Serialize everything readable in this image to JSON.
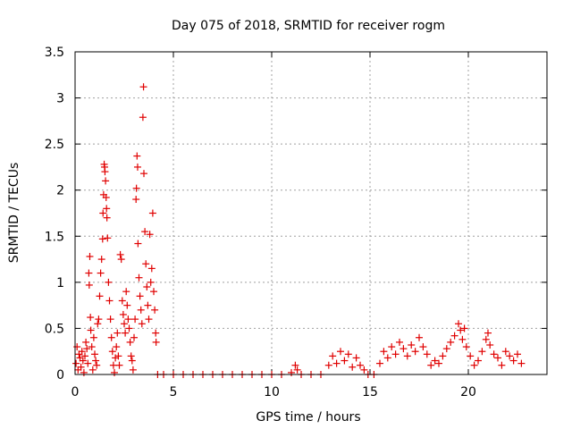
{
  "chart_data": {
    "type": "scatter",
    "title": "Day 075 of 2018, SRMTID for receiver rogm",
    "xlabel": "GPS time / hours",
    "ylabel": "SRMTID / TECUs",
    "xlim": [
      0,
      24
    ],
    "ylim": [
      0,
      3.5
    ],
    "grid": true,
    "marker": "plus",
    "color": "#e00000",
    "x_ticks": [
      0,
      5,
      10,
      15,
      20
    ],
    "x_tick_labels": [
      "0",
      "5",
      "10",
      "15",
      "20"
    ],
    "y_ticks": [
      0,
      0.5,
      1,
      1.5,
      2,
      2.5,
      3,
      3.5
    ],
    "y_tick_labels": [
      "0",
      "0.5",
      "1",
      "1.5",
      "2",
      "2.5",
      "3",
      "3.5"
    ],
    "series": [
      {
        "points": [
          [
            0.05,
            0.12
          ],
          [
            0.1,
            0.3
          ],
          [
            0.15,
            0.05
          ],
          [
            0.2,
            0.22
          ],
          [
            0.25,
            0.18
          ],
          [
            0.3,
            0.08
          ],
          [
            0.35,
            0.25
          ],
          [
            0.4,
            0.15
          ],
          [
            0.45,
            0.02
          ],
          [
            0.5,
            0.2
          ],
          [
            0.55,
            0.35
          ],
          [
            0.6,
            0.28
          ],
          [
            0.65,
            0.12
          ],
          [
            0.7,
            1.1
          ],
          [
            0.72,
            0.97
          ],
          [
            0.75,
            1.28
          ],
          [
            0.78,
            0.62
          ],
          [
            0.8,
            0.48
          ],
          [
            0.85,
            0.3
          ],
          [
            0.9,
            0.05
          ],
          [
            0.95,
            0.4
          ],
          [
            1.0,
            0.22
          ],
          [
            1.05,
            0.15
          ],
          [
            1.1,
            0.1
          ],
          [
            1.15,
            0.55
          ],
          [
            1.2,
            0.6
          ],
          [
            1.25,
            0.85
          ],
          [
            1.3,
            1.1
          ],
          [
            1.35,
            1.25
          ],
          [
            1.4,
            1.47
          ],
          [
            1.42,
            1.75
          ],
          [
            1.45,
            1.95
          ],
          [
            1.48,
            2.28
          ],
          [
            1.5,
            2.25
          ],
          [
            1.52,
            2.2
          ],
          [
            1.55,
            2.1
          ],
          [
            1.58,
            1.92
          ],
          [
            1.6,
            1.8
          ],
          [
            1.62,
            1.7
          ],
          [
            1.65,
            1.48
          ],
          [
            1.7,
            1.0
          ],
          [
            1.75,
            0.8
          ],
          [
            1.8,
            0.6
          ],
          [
            1.85,
            0.4
          ],
          [
            1.9,
            0.25
          ],
          [
            1.95,
            0.1
          ],
          [
            2.0,
            0.02
          ],
          [
            2.05,
            0.18
          ],
          [
            2.1,
            0.3
          ],
          [
            2.15,
            0.45
          ],
          [
            2.2,
            0.2
          ],
          [
            2.25,
            0.1
          ],
          [
            2.3,
            1.3
          ],
          [
            2.35,
            1.25
          ],
          [
            2.4,
            0.8
          ],
          [
            2.45,
            0.65
          ],
          [
            2.5,
            0.55
          ],
          [
            2.55,
            0.45
          ],
          [
            2.6,
            0.9
          ],
          [
            2.65,
            0.75
          ],
          [
            2.7,
            0.6
          ],
          [
            2.75,
            0.5
          ],
          [
            2.8,
            0.35
          ],
          [
            2.85,
            0.2
          ],
          [
            2.9,
            0.15
          ],
          [
            2.95,
            0.05
          ],
          [
            3.0,
            0.4
          ],
          [
            3.05,
            0.6
          ],
          [
            3.1,
            1.9
          ],
          [
            3.12,
            2.02
          ],
          [
            3.15,
            2.37
          ],
          [
            3.18,
            2.25
          ],
          [
            3.2,
            1.42
          ],
          [
            3.25,
            1.05
          ],
          [
            3.3,
            0.85
          ],
          [
            3.35,
            0.7
          ],
          [
            3.4,
            0.55
          ],
          [
            3.45,
            2.79
          ],
          [
            3.48,
            3.12
          ],
          [
            3.5,
            2.18
          ],
          [
            3.55,
            1.55
          ],
          [
            3.6,
            1.2
          ],
          [
            3.65,
            0.95
          ],
          [
            3.7,
            0.75
          ],
          [
            3.75,
            0.6
          ],
          [
            3.8,
            1.52
          ],
          [
            3.85,
            1.0
          ],
          [
            3.9,
            1.15
          ],
          [
            3.95,
            1.75
          ],
          [
            4.0,
            0.9
          ],
          [
            4.05,
            0.7
          ],
          [
            4.1,
            0.45
          ],
          [
            4.12,
            0.35
          ],
          [
            4.2,
            0.0
          ],
          [
            4.5,
            0.0
          ],
          [
            5.0,
            0.0
          ],
          [
            5.5,
            0.0
          ],
          [
            6.0,
            0.0
          ],
          [
            6.5,
            0.0
          ],
          [
            7.0,
            0.0
          ],
          [
            7.5,
            0.0
          ],
          [
            8.0,
            0.0
          ],
          [
            8.5,
            0.0
          ],
          [
            9.0,
            0.0
          ],
          [
            9.5,
            0.0
          ],
          [
            10.0,
            0.0
          ],
          [
            10.5,
            0.0
          ],
          [
            11.0,
            0.02
          ],
          [
            11.2,
            0.1
          ],
          [
            11.3,
            0.05
          ],
          [
            11.5,
            0.0
          ],
          [
            12.0,
            0.0
          ],
          [
            12.5,
            0.0
          ],
          [
            12.9,
            0.1
          ],
          [
            13.1,
            0.2
          ],
          [
            13.3,
            0.12
          ],
          [
            13.5,
            0.25
          ],
          [
            13.7,
            0.15
          ],
          [
            13.9,
            0.22
          ],
          [
            14.1,
            0.08
          ],
          [
            14.3,
            0.18
          ],
          [
            14.5,
            0.1
          ],
          [
            14.7,
            0.05
          ],
          [
            14.9,
            0.0
          ],
          [
            15.2,
            0.0
          ],
          [
            15.5,
            0.12
          ],
          [
            15.7,
            0.25
          ],
          [
            15.9,
            0.18
          ],
          [
            16.1,
            0.3
          ],
          [
            16.3,
            0.22
          ],
          [
            16.5,
            0.35
          ],
          [
            16.7,
            0.28
          ],
          [
            16.9,
            0.2
          ],
          [
            17.1,
            0.32
          ],
          [
            17.3,
            0.25
          ],
          [
            17.5,
            0.4
          ],
          [
            17.7,
            0.3
          ],
          [
            17.9,
            0.22
          ],
          [
            18.1,
            0.1
          ],
          [
            18.3,
            0.15
          ],
          [
            18.5,
            0.12
          ],
          [
            18.7,
            0.2
          ],
          [
            18.9,
            0.28
          ],
          [
            19.1,
            0.35
          ],
          [
            19.3,
            0.42
          ],
          [
            19.5,
            0.55
          ],
          [
            19.6,
            0.48
          ],
          [
            19.7,
            0.38
          ],
          [
            19.8,
            0.5
          ],
          [
            19.9,
            0.3
          ],
          [
            20.1,
            0.2
          ],
          [
            20.3,
            0.1
          ],
          [
            20.5,
            0.15
          ],
          [
            20.7,
            0.25
          ],
          [
            20.9,
            0.38
          ],
          [
            21.0,
            0.45
          ],
          [
            21.1,
            0.32
          ],
          [
            21.3,
            0.22
          ],
          [
            21.5,
            0.18
          ],
          [
            21.7,
            0.1
          ],
          [
            21.9,
            0.25
          ],
          [
            22.1,
            0.2
          ],
          [
            22.3,
            0.15
          ],
          [
            22.5,
            0.22
          ],
          [
            22.7,
            0.12
          ]
        ]
      }
    ]
  }
}
